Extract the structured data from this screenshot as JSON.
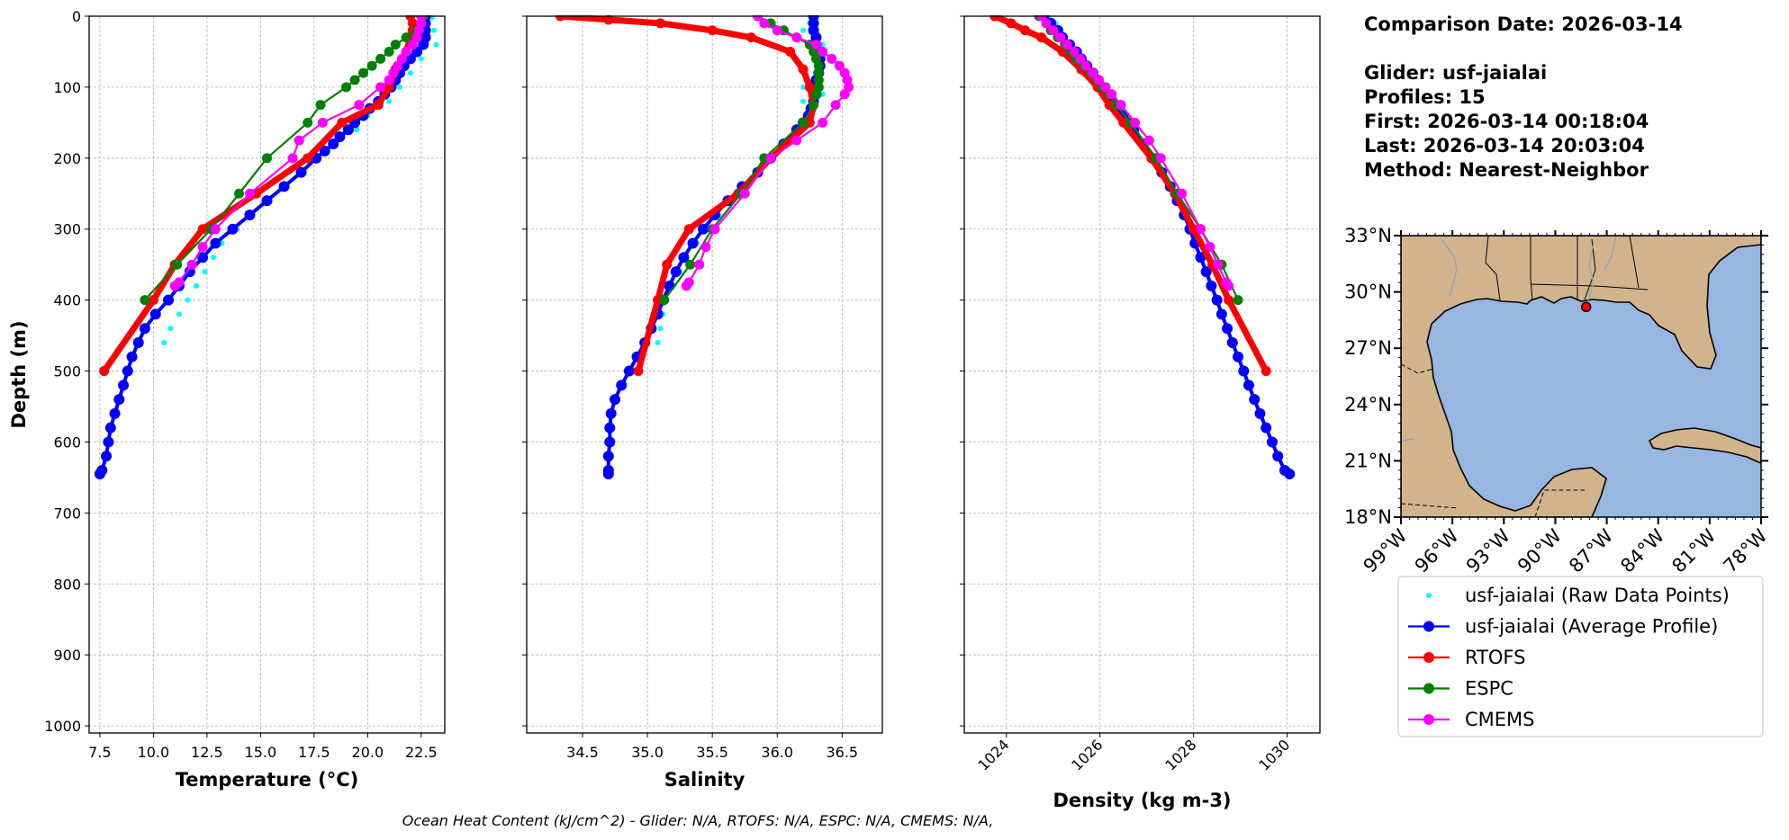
{
  "info": {
    "comparison_date": "Comparison Date: 2026-03-14",
    "glider": "Glider: usf-jaialai",
    "profiles": "Profiles: 15",
    "first": "First: 2026-03-14 00:18:04",
    "last": "Last: 2026-03-14 20:03:04",
    "method": "Method: Nearest-Neighbor"
  },
  "footer": "Ocean Heat Content (kJ/cm^2) - Glider: N/A,  RTOFS: N/A,  ESPC: N/A,  CMEMS: N/A,",
  "colors": {
    "raw": "#00ffff",
    "glider": "#0000ff",
    "rtofs": "#ff0000",
    "espc": "#008000",
    "cmems": "#ff00ff",
    "ocean": "#97b6e1",
    "land": "#d2b48c"
  },
  "map": {
    "lat_ticks": [
      "18°N",
      "21°N",
      "24°N",
      "27°N",
      "30°N",
      "33°N"
    ],
    "lon_ticks": [
      "99°W",
      "96°W",
      "93°W",
      "90°W",
      "87°W",
      "84°W",
      "81°W",
      "78°W"
    ],
    "extent": {
      "lon_min": -99,
      "lon_max": -78,
      "lat_min": 18,
      "lat_max": 33
    },
    "glider_location": {
      "lon": -88.2,
      "lat": 29.2
    }
  },
  "legend": [
    {
      "label": "usf-jaialai (Raw Data Points)",
      "color": "#00ffff",
      "style": "points"
    },
    {
      "label": "usf-jaialai (Average Profile)",
      "color": "#0000ff",
      "style": "line"
    },
    {
      "label": "RTOFS",
      "color": "#ff0000",
      "style": "line"
    },
    {
      "label": "ESPC",
      "color": "#008000",
      "style": "line"
    },
    {
      "label": "CMEMS",
      "color": "#ff00ff",
      "style": "line"
    }
  ],
  "chart_data": [
    {
      "type": "line",
      "title": "",
      "xlabel": "Temperature (°C)",
      "ylabel": "Depth (m)",
      "xlim": [
        7.0,
        23.6
      ],
      "ylim": [
        1010,
        0
      ],
      "y_inverted": true,
      "grid": true,
      "xticks": [
        7.5,
        10.0,
        12.5,
        15.0,
        17.5,
        20.0,
        22.5
      ],
      "xtick_labels": [
        "7.5",
        "10.0",
        "12.5",
        "15.0",
        "17.5",
        "20.0",
        "22.5"
      ],
      "yticks": [
        0,
        100,
        200,
        300,
        400,
        500,
        600,
        700,
        800,
        900,
        1000
      ],
      "ytick_labels": [
        "0",
        "100",
        "200",
        "300",
        "400",
        "500",
        "600",
        "700",
        "800",
        "900",
        "1000"
      ],
      "series": [
        {
          "name": "usf-jaialai (Raw Data Points)",
          "depth": [
            2,
            10,
            20,
            30,
            40,
            50,
            60,
            80,
            100,
            120,
            140,
            160,
            180,
            200,
            220,
            240,
            260,
            280,
            300,
            320,
            340,
            360,
            380,
            400,
            420,
            440,
            460
          ],
          "values": [
            23.0,
            22.8,
            23.1,
            22.6,
            23.2,
            22.4,
            22.5,
            22.0,
            21.5,
            21.0,
            20.0,
            19.5,
            18.5,
            17.7,
            17.0,
            16.2,
            15.3,
            14.6,
            13.9,
            13.2,
            12.8,
            12.4,
            12.0,
            11.6,
            11.2,
            10.8,
            10.5
          ]
        },
        {
          "name": "usf-jaialai (Average Profile)",
          "depth": [
            0,
            10,
            20,
            30,
            40,
            50,
            60,
            70,
            80,
            90,
            100,
            110,
            120,
            130,
            140,
            150,
            160,
            170,
            180,
            190,
            200,
            220,
            240,
            260,
            280,
            300,
            320,
            340,
            360,
            380,
            400,
            420,
            440,
            460,
            480,
            500,
            520,
            540,
            560,
            580,
            600,
            620,
            640,
            645
          ],
          "values": [
            22.7,
            22.7,
            22.7,
            22.7,
            22.6,
            22.3,
            22.0,
            21.7,
            21.5,
            21.3,
            21.1,
            20.8,
            20.5,
            20.1,
            19.8,
            19.4,
            19.1,
            18.7,
            18.4,
            18.0,
            17.6,
            16.9,
            16.1,
            15.3,
            14.5,
            13.7,
            12.9,
            12.3,
            11.7,
            11.2,
            10.7,
            10.1,
            9.6,
            9.3,
            9.0,
            8.8,
            8.6,
            8.4,
            8.2,
            8.0,
            7.9,
            7.8,
            7.6,
            7.5
          ]
        },
        {
          "name": "RTOFS",
          "depth": [
            0,
            10,
            20,
            30,
            50,
            75,
            100,
            125,
            150,
            200,
            250,
            300,
            350,
            400,
            500
          ],
          "values": [
            22.0,
            22.1,
            22.1,
            22.0,
            21.8,
            21.3,
            21.0,
            20.5,
            18.8,
            17.2,
            14.8,
            12.3,
            11.0,
            10.0,
            7.7
          ]
        },
        {
          "name": "ESPC",
          "depth": [
            0,
            10,
            20,
            30,
            40,
            50,
            60,
            70,
            80,
            90,
            100,
            125,
            150,
            200,
            250,
            300,
            350,
            400
          ],
          "values": [
            22.6,
            22.5,
            22.3,
            21.8,
            21.3,
            21.0,
            20.6,
            20.2,
            19.8,
            19.4,
            19.0,
            17.8,
            17.2,
            15.3,
            14.0,
            12.7,
            11.1,
            9.6
          ]
        },
        {
          "name": "CMEMS",
          "depth": [
            0,
            10,
            20,
            30,
            40,
            50,
            60,
            70,
            80,
            90,
            100,
            125,
            150,
            175,
            200,
            250,
            300,
            325,
            350,
            375,
            380
          ],
          "values": [
            22.5,
            22.5,
            22.4,
            22.3,
            22.1,
            21.8,
            21.6,
            21.4,
            21.2,
            21.0,
            20.6,
            19.6,
            17.9,
            16.8,
            16.5,
            14.5,
            12.9,
            12.3,
            11.8,
            11.2,
            11.0
          ]
        }
      ]
    },
    {
      "type": "line",
      "title": "",
      "xlabel": "Salinity",
      "ylabel": "",
      "xlim": [
        34.07,
        36.81
      ],
      "ylim": [
        1010,
        0
      ],
      "y_inverted": true,
      "grid": true,
      "xticks": [
        34.5,
        35.0,
        35.5,
        36.0,
        36.5
      ],
      "xtick_labels": [
        "34.5",
        "35.0",
        "35.5",
        "36.0",
        "36.5"
      ],
      "series": [
        {
          "name": "usf-jaialai (Raw Data Points)",
          "depth": [
            2,
            10,
            20,
            30,
            40,
            50,
            60,
            80,
            100,
            110,
            120,
            140,
            160,
            180,
            200,
            220,
            240,
            260,
            280,
            300,
            320,
            340,
            360,
            380,
            400,
            420,
            440,
            460
          ],
          "values": [
            36.3,
            36.25,
            36.2,
            35.8,
            36.35,
            36.3,
            36.4,
            36.3,
            36.2,
            36.35,
            36.2,
            36.25,
            36.2,
            36.05,
            35.95,
            35.85,
            35.75,
            35.65,
            35.55,
            35.45,
            35.38,
            35.3,
            35.25,
            35.2,
            35.15,
            35.12,
            35.1,
            35.08
          ]
        },
        {
          "name": "usf-jaialai (Average Profile)",
          "depth": [
            0,
            10,
            20,
            30,
            40,
            50,
            60,
            70,
            80,
            90,
            100,
            110,
            120,
            130,
            140,
            150,
            160,
            180,
            200,
            220,
            240,
            260,
            280,
            300,
            320,
            340,
            360,
            380,
            400,
            420,
            440,
            460,
            480,
            500,
            520,
            540,
            560,
            580,
            600,
            620,
            640,
            645
          ],
          "values": [
            36.28,
            36.28,
            36.28,
            36.3,
            36.3,
            36.32,
            36.33,
            36.33,
            36.32,
            36.3,
            36.3,
            36.3,
            36.28,
            36.26,
            36.24,
            36.2,
            36.15,
            36.05,
            35.95,
            35.85,
            35.73,
            35.62,
            35.52,
            35.43,
            35.35,
            35.28,
            35.22,
            35.17,
            35.12,
            35.08,
            35.03,
            34.98,
            34.92,
            34.86,
            34.8,
            34.75,
            34.72,
            34.71,
            34.71,
            34.7,
            34.7,
            34.7
          ]
        },
        {
          "name": "RTOFS",
          "depth": [
            0,
            5,
            10,
            20,
            30,
            50,
            75,
            100,
            125,
            150,
            200,
            250,
            300,
            350,
            400,
            500
          ],
          "values": [
            34.33,
            34.7,
            35.1,
            35.5,
            35.8,
            36.1,
            36.2,
            36.25,
            36.28,
            36.25,
            35.95,
            35.7,
            35.32,
            35.15,
            35.08,
            34.93
          ]
        },
        {
          "name": "ESPC",
          "depth": [
            0,
            10,
            20,
            30,
            40,
            50,
            60,
            70,
            80,
            90,
            100,
            110,
            125,
            150,
            200,
            250,
            300,
            350,
            400
          ],
          "values": [
            35.85,
            35.95,
            36.05,
            36.15,
            36.25,
            36.28,
            36.3,
            36.32,
            36.32,
            36.32,
            36.32,
            36.3,
            36.28,
            36.2,
            35.9,
            35.72,
            35.5,
            35.33,
            35.13
          ]
        },
        {
          "name": "CMEMS",
          "depth": [
            0,
            10,
            20,
            30,
            40,
            50,
            60,
            70,
            80,
            90,
            100,
            110,
            125,
            150,
            175,
            200,
            250,
            300,
            325,
            350,
            375,
            380
          ],
          "values": [
            35.85,
            35.9,
            36.0,
            36.15,
            36.3,
            36.35,
            36.42,
            36.48,
            36.52,
            36.54,
            36.55,
            36.52,
            36.45,
            36.35,
            36.15,
            35.95,
            35.75,
            35.52,
            35.45,
            35.4,
            35.32,
            35.3
          ]
        }
      ]
    },
    {
      "type": "line",
      "title": "",
      "xlabel": "Density (kg m-3)",
      "ylabel": "",
      "xlim": [
        1023.1,
        1030.7
      ],
      "ylim": [
        1010,
        0
      ],
      "y_inverted": true,
      "grid": true,
      "xticks": [
        1024,
        1026,
        1028,
        1030
      ],
      "xtick_labels": [
        "1024",
        "1026",
        "1028",
        "1030"
      ],
      "series": [
        {
          "name": "usf-jaialai (Raw Data Points)",
          "depth": [
            2,
            10,
            20,
            30,
            40,
            50,
            60,
            70,
            80,
            90,
            100,
            110,
            120,
            130,
            140,
            150,
            160,
            170,
            180,
            190,
            200
          ],
          "values": [
            1024.9,
            1025.05,
            1025.1,
            1025.2,
            1025.3,
            1025.4,
            1025.55,
            1025.65,
            1025.75,
            1025.85,
            1025.95,
            1026.05,
            1026.15,
            1026.3,
            1026.45,
            1026.55,
            1026.7,
            1026.8,
            1026.9,
            1027.0,
            1027.1
          ]
        },
        {
          "name": "usf-jaialai (Average Profile)",
          "depth": [
            0,
            10,
            20,
            30,
            40,
            50,
            60,
            70,
            80,
            90,
            100,
            110,
            120,
            130,
            140,
            150,
            160,
            180,
            200,
            220,
            240,
            260,
            280,
            300,
            320,
            340,
            360,
            380,
            400,
            420,
            440,
            460,
            480,
            500,
            520,
            540,
            560,
            580,
            600,
            620,
            640,
            645
          ],
          "values": [
            1024.8,
            1024.95,
            1025.1,
            1025.2,
            1025.35,
            1025.5,
            1025.6,
            1025.72,
            1025.85,
            1025.95,
            1026.05,
            1026.15,
            1026.27,
            1026.38,
            1026.5,
            1026.6,
            1026.72,
            1026.92,
            1027.12,
            1027.32,
            1027.5,
            1027.65,
            1027.8,
            1027.92,
            1028.03,
            1028.15,
            1028.27,
            1028.38,
            1028.5,
            1028.6,
            1028.72,
            1028.83,
            1028.95,
            1029.07,
            1029.18,
            1029.3,
            1029.42,
            1029.55,
            1029.68,
            1029.8,
            1029.95,
            1030.05
          ]
        },
        {
          "name": "RTOFS",
          "depth": [
            0,
            10,
            20,
            30,
            50,
            75,
            100,
            125,
            150,
            200,
            250,
            300,
            350,
            400,
            500
          ],
          "values": [
            1023.75,
            1024.1,
            1024.4,
            1024.75,
            1025.2,
            1025.6,
            1025.95,
            1026.2,
            1026.5,
            1027.1,
            1027.6,
            1028.0,
            1028.4,
            1028.75,
            1029.55
          ]
        },
        {
          "name": "ESPC",
          "depth": [
            0,
            10,
            20,
            30,
            40,
            50,
            60,
            70,
            80,
            90,
            100,
            110,
            125,
            150,
            200,
            250,
            300,
            350,
            400
          ],
          "values": [
            1024.7,
            1024.85,
            1024.95,
            1025.1,
            1025.25,
            1025.38,
            1025.5,
            1025.65,
            1025.8,
            1025.95,
            1026.05,
            1026.2,
            1026.35,
            1026.65,
            1027.2,
            1027.65,
            1028.15,
            1028.6,
            1028.95
          ]
        },
        {
          "name": "CMEMS",
          "depth": [
            0,
            10,
            20,
            30,
            40,
            50,
            60,
            70,
            80,
            90,
            100,
            110,
            125,
            150,
            175,
            200,
            250,
            300,
            325,
            350,
            375,
            380
          ],
          "values": [
            1024.75,
            1024.85,
            1025.0,
            1025.15,
            1025.3,
            1025.45,
            1025.58,
            1025.7,
            1025.85,
            1025.98,
            1026.12,
            1026.25,
            1026.45,
            1026.75,
            1027.05,
            1027.3,
            1027.75,
            1028.15,
            1028.35,
            1028.52,
            1028.7,
            1028.75
          ]
        }
      ]
    }
  ]
}
